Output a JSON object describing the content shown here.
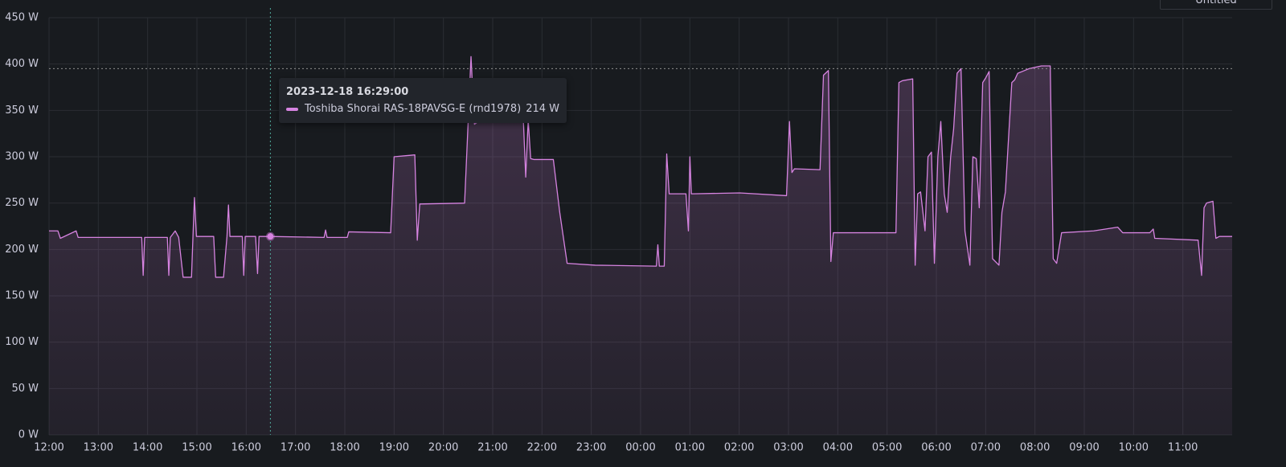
{
  "chart_data": {
    "type": "line",
    "ylim": [
      0,
      450
    ],
    "yticks": [
      {
        "value": 0,
        "label": "0 W"
      },
      {
        "value": 50,
        "label": "50 W"
      },
      {
        "value": 100,
        "label": "100 W"
      },
      {
        "value": 150,
        "label": "150 W"
      },
      {
        "value": 200,
        "label": "200 W"
      },
      {
        "value": 250,
        "label": "250 W"
      },
      {
        "value": 300,
        "label": "300 W"
      },
      {
        "value": 350,
        "label": "350 W"
      },
      {
        "value": 400,
        "label": "400 W"
      },
      {
        "value": 450,
        "label": "450 W"
      }
    ],
    "xlim": [
      0,
      24
    ],
    "xticks": [
      {
        "value": 0,
        "label": "12:00"
      },
      {
        "value": 1,
        "label": "13:00"
      },
      {
        "value": 2,
        "label": "14:00"
      },
      {
        "value": 3,
        "label": "15:00"
      },
      {
        "value": 4,
        "label": "16:00"
      },
      {
        "value": 5,
        "label": "17:00"
      },
      {
        "value": 6,
        "label": "18:00"
      },
      {
        "value": 7,
        "label": "19:00"
      },
      {
        "value": 8,
        "label": "20:00"
      },
      {
        "value": 9,
        "label": "21:00"
      },
      {
        "value": 10,
        "label": "22:00"
      },
      {
        "value": 11,
        "label": "23:00"
      },
      {
        "value": 12,
        "label": "00:00"
      },
      {
        "value": 13,
        "label": "01:00"
      },
      {
        "value": 14,
        "label": "02:00"
      },
      {
        "value": 15,
        "label": "03:00"
      },
      {
        "value": 16,
        "label": "04:00"
      },
      {
        "value": 17,
        "label": "05:00"
      },
      {
        "value": 18,
        "label": "06:00"
      },
      {
        "value": 19,
        "label": "07:00"
      },
      {
        "value": 20,
        "label": "08:00"
      },
      {
        "value": 21,
        "label": "09:00"
      },
      {
        "value": 22,
        "label": "10:00"
      },
      {
        "value": 23,
        "label": "11:00"
      }
    ],
    "grid": true,
    "x": [
      0,
      0.18,
      0.23,
      0.55,
      0.59,
      1.88,
      1.91,
      1.94,
      2.4,
      2.43,
      2.46,
      2.56,
      2.63,
      2.72,
      2.89,
      2.92,
      2.95,
      2.99,
      3.34,
      3.38,
      3.54,
      3.61,
      3.64,
      3.67,
      3.92,
      3.95,
      3.98,
      4.19,
      4.23,
      4.26,
      4.49,
      5.58,
      5.61,
      5.64,
      6.05,
      6.08,
      6.93,
      7.0,
      7.42,
      7.47,
      7.52,
      8.43,
      8.5,
      8.56,
      8.63,
      8.76,
      9.62,
      9.67,
      9.72,
      9.77,
      9.84,
      10.23,
      10.36,
      10.51,
      11.08,
      12.32,
      12.35,
      12.38,
      12.48,
      12.53,
      12.58,
      12.92,
      12.97,
      13.0,
      13.03,
      13.07,
      14.01,
      14.96,
      15.02,
      15.07,
      15.12,
      15.64,
      15.71,
      15.81,
      15.86,
      15.91,
      15.97,
      17.18,
      17.24,
      17.31,
      17.52,
      17.57,
      17.62,
      17.68,
      17.77,
      17.83,
      17.9,
      17.96,
      18.03,
      18.09,
      18.16,
      18.22,
      18.29,
      18.35,
      18.42,
      18.5,
      18.58,
      18.68,
      18.74,
      18.81,
      18.87,
      18.94,
      19.0,
      19.07,
      19.14,
      19.27,
      19.33,
      19.4,
      19.53,
      19.59,
      19.65,
      19.88,
      20.13,
      20.31,
      20.37,
      20.44,
      20.54,
      21.19,
      21.68,
      21.78,
      22.33,
      22.4,
      22.43,
      23.31,
      23.38,
      23.43,
      23.48,
      23.61,
      23.67,
      23.74,
      24.0
    ],
    "series": [
      {
        "name": "Toshiba Shorai RAS-18PAVSG-E (rnd1978)",
        "color": "#d683e0",
        "values": [
          220,
          220,
          212,
          220,
          213,
          213,
          172,
          213,
          213,
          172,
          213,
          220,
          213,
          170,
          170,
          214,
          256,
          214,
          214,
          170,
          170,
          214,
          248,
          214,
          214,
          172,
          214,
          214,
          174,
          214,
          214,
          213,
          221,
          213,
          213,
          219,
          218,
          300,
          302,
          210,
          249,
          250,
          335,
          408,
          335,
          340,
          342,
          278,
          340,
          298,
          297,
          297,
          240,
          185,
          183,
          182,
          205,
          182,
          182,
          303,
          260,
          260,
          220,
          300,
          260,
          260,
          261,
          258,
          338,
          283,
          287,
          286,
          388,
          393,
          187,
          218,
          218,
          218,
          380,
          382,
          384,
          183,
          260,
          262,
          220,
          300,
          305,
          185,
          300,
          338,
          260,
          240,
          300,
          330,
          390,
          395,
          220,
          183,
          300,
          298,
          245,
          380,
          385,
          392,
          190,
          183,
          240,
          262,
          380,
          383,
          390,
          395,
          398,
          398,
          190,
          185,
          218,
          220,
          224,
          218,
          218,
          222,
          212,
          210,
          172,
          245,
          250,
          252,
          212,
          214,
          214
        ]
      }
    ],
    "reference_line": 395,
    "tooltip": {
      "title": "2023-12-18 16:29:00",
      "x": 4.49,
      "value": 214,
      "value_label": "214 W"
    },
    "panel_button": "Untitled"
  }
}
